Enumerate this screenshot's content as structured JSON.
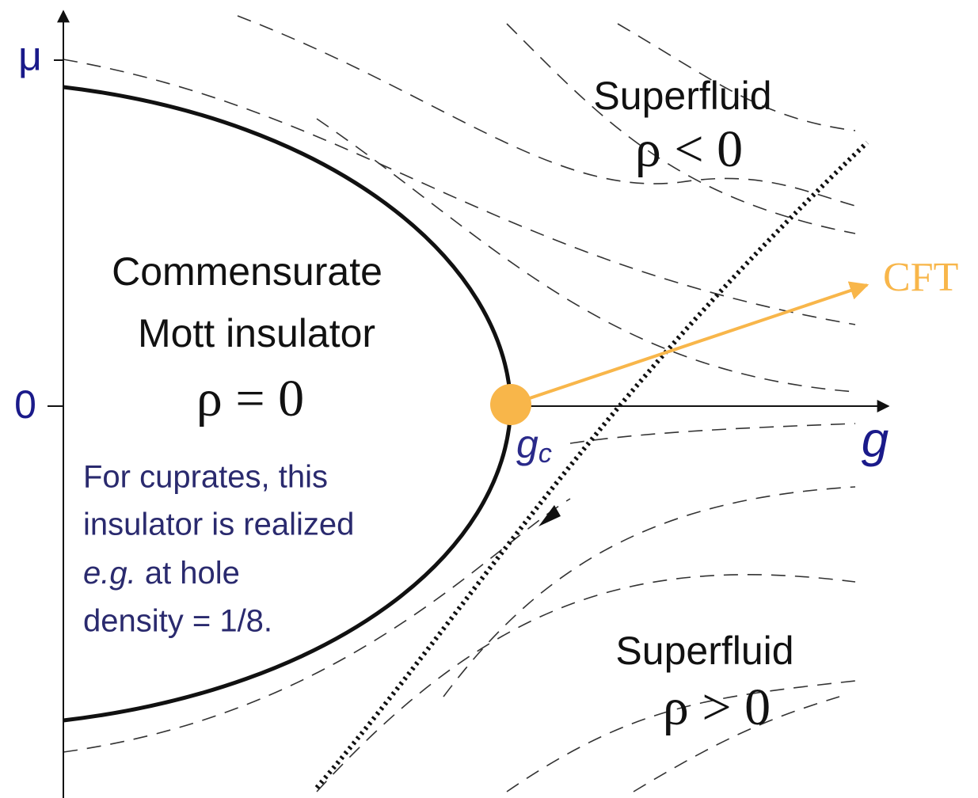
{
  "axes": {
    "y_label": "μ",
    "origin_label": "0",
    "x_label": "g",
    "critical_label": "g",
    "critical_subscript": "c"
  },
  "regions": {
    "upper": {
      "name": "Superfluid",
      "formula": "ρ < 0"
    },
    "center": {
      "name_line1": "Commensurate",
      "name_line2": "Mott insulator",
      "formula": "ρ = 0"
    },
    "lower": {
      "name": "Superfluid",
      "formula": "ρ > 0"
    }
  },
  "note": {
    "line1": "For cuprates, this",
    "line2": "insulator is realized",
    "line3_italic": "e.g.",
    "line3_rest": " at hole",
    "line4": "density = 1/8."
  },
  "annotation": "CFT"
}
